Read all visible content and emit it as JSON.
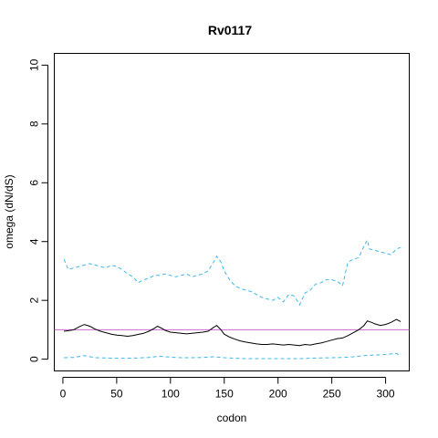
{
  "chart_data": {
    "type": "line",
    "title": "Rv0117",
    "xlabel": "codon",
    "ylabel": "omega (dN/dS)",
    "xlim": [
      -8,
      322
    ],
    "ylim": [
      -0.4,
      10.4
    ],
    "x_ticks": [
      0,
      50,
      100,
      150,
      200,
      250,
      300
    ],
    "y_ticks": [
      0,
      2,
      4,
      6,
      8,
      10
    ],
    "grid": false,
    "reference_line": {
      "y": 1,
      "color": "#CC66CC"
    },
    "series": [
      {
        "style": "solid",
        "color": "#000000",
        "x": [
          1,
          5,
          10,
          15,
          20,
          25,
          30,
          35,
          40,
          45,
          50,
          55,
          60,
          65,
          70,
          75,
          80,
          85,
          88,
          92,
          95,
          100,
          105,
          110,
          115,
          120,
          125,
          130,
          135,
          140,
          143,
          147,
          150,
          155,
          160,
          165,
          170,
          175,
          180,
          185,
          190,
          195,
          200,
          205,
          210,
          215,
          220,
          225,
          230,
          235,
          240,
          245,
          250,
          255,
          260,
          265,
          270,
          275,
          280,
          283,
          287,
          290,
          295,
          300,
          305,
          310,
          314
        ],
        "y": [
          0.95,
          0.97,
          1.0,
          1.1,
          1.18,
          1.12,
          1.02,
          0.95,
          0.9,
          0.85,
          0.82,
          0.8,
          0.78,
          0.8,
          0.84,
          0.88,
          0.95,
          1.05,
          1.12,
          1.05,
          0.98,
          0.92,
          0.9,
          0.88,
          0.86,
          0.88,
          0.9,
          0.92,
          0.95,
          1.08,
          1.15,
          1.0,
          0.85,
          0.75,
          0.68,
          0.62,
          0.58,
          0.55,
          0.52,
          0.5,
          0.5,
          0.52,
          0.5,
          0.48,
          0.5,
          0.48,
          0.46,
          0.5,
          0.48,
          0.52,
          0.55,
          0.6,
          0.65,
          0.7,
          0.72,
          0.8,
          0.9,
          1.0,
          1.15,
          1.3,
          1.25,
          1.2,
          1.15,
          1.18,
          1.25,
          1.35,
          1.28
        ]
      },
      {
        "style": "dashed",
        "color": "#3DB7E9",
        "x": [
          1,
          5,
          10,
          15,
          20,
          25,
          30,
          35,
          40,
          45,
          50,
          55,
          60,
          65,
          70,
          75,
          80,
          85,
          90,
          95,
          100,
          105,
          110,
          115,
          120,
          125,
          130,
          135,
          140,
          143,
          147,
          150,
          155,
          160,
          165,
          170,
          175,
          180,
          185,
          190,
          195,
          200,
          205,
          210,
          215,
          220,
          225,
          230,
          235,
          240,
          245,
          250,
          255,
          260,
          265,
          270,
          275,
          280,
          283,
          285,
          290,
          295,
          300,
          305,
          310,
          314
        ],
        "y": [
          3.4,
          3.05,
          3.1,
          3.15,
          3.2,
          3.25,
          3.2,
          3.15,
          3.1,
          3.2,
          3.15,
          3.05,
          2.9,
          2.8,
          2.6,
          2.7,
          2.75,
          2.85,
          2.85,
          2.9,
          2.85,
          2.8,
          2.85,
          2.9,
          2.8,
          2.85,
          2.9,
          3.0,
          3.3,
          3.5,
          3.3,
          3.0,
          2.7,
          2.5,
          2.4,
          2.35,
          2.3,
          2.2,
          2.1,
          2.05,
          2.0,
          2.1,
          1.95,
          2.2,
          2.15,
          1.85,
          2.25,
          2.35,
          2.55,
          2.6,
          2.7,
          2.7,
          2.65,
          2.5,
          3.3,
          3.4,
          3.45,
          3.85,
          4.05,
          3.75,
          3.7,
          3.65,
          3.6,
          3.55,
          3.75,
          3.8
        ]
      },
      {
        "style": "dashed",
        "color": "#3DB7E9",
        "x": [
          1,
          10,
          20,
          30,
          40,
          50,
          60,
          70,
          80,
          90,
          100,
          110,
          120,
          130,
          140,
          150,
          160,
          170,
          180,
          190,
          200,
          210,
          220,
          230,
          240,
          250,
          260,
          270,
          280,
          290,
          300,
          310,
          314
        ],
        "y": [
          0.05,
          0.06,
          0.12,
          0.05,
          0.04,
          0.03,
          0.03,
          0.04,
          0.06,
          0.1,
          0.07,
          0.05,
          0.05,
          0.06,
          0.08,
          0.05,
          0.03,
          0.02,
          0.02,
          0.02,
          0.02,
          0.02,
          0.02,
          0.03,
          0.04,
          0.05,
          0.06,
          0.08,
          0.12,
          0.14,
          0.16,
          0.2,
          0.1
        ]
      }
    ]
  }
}
